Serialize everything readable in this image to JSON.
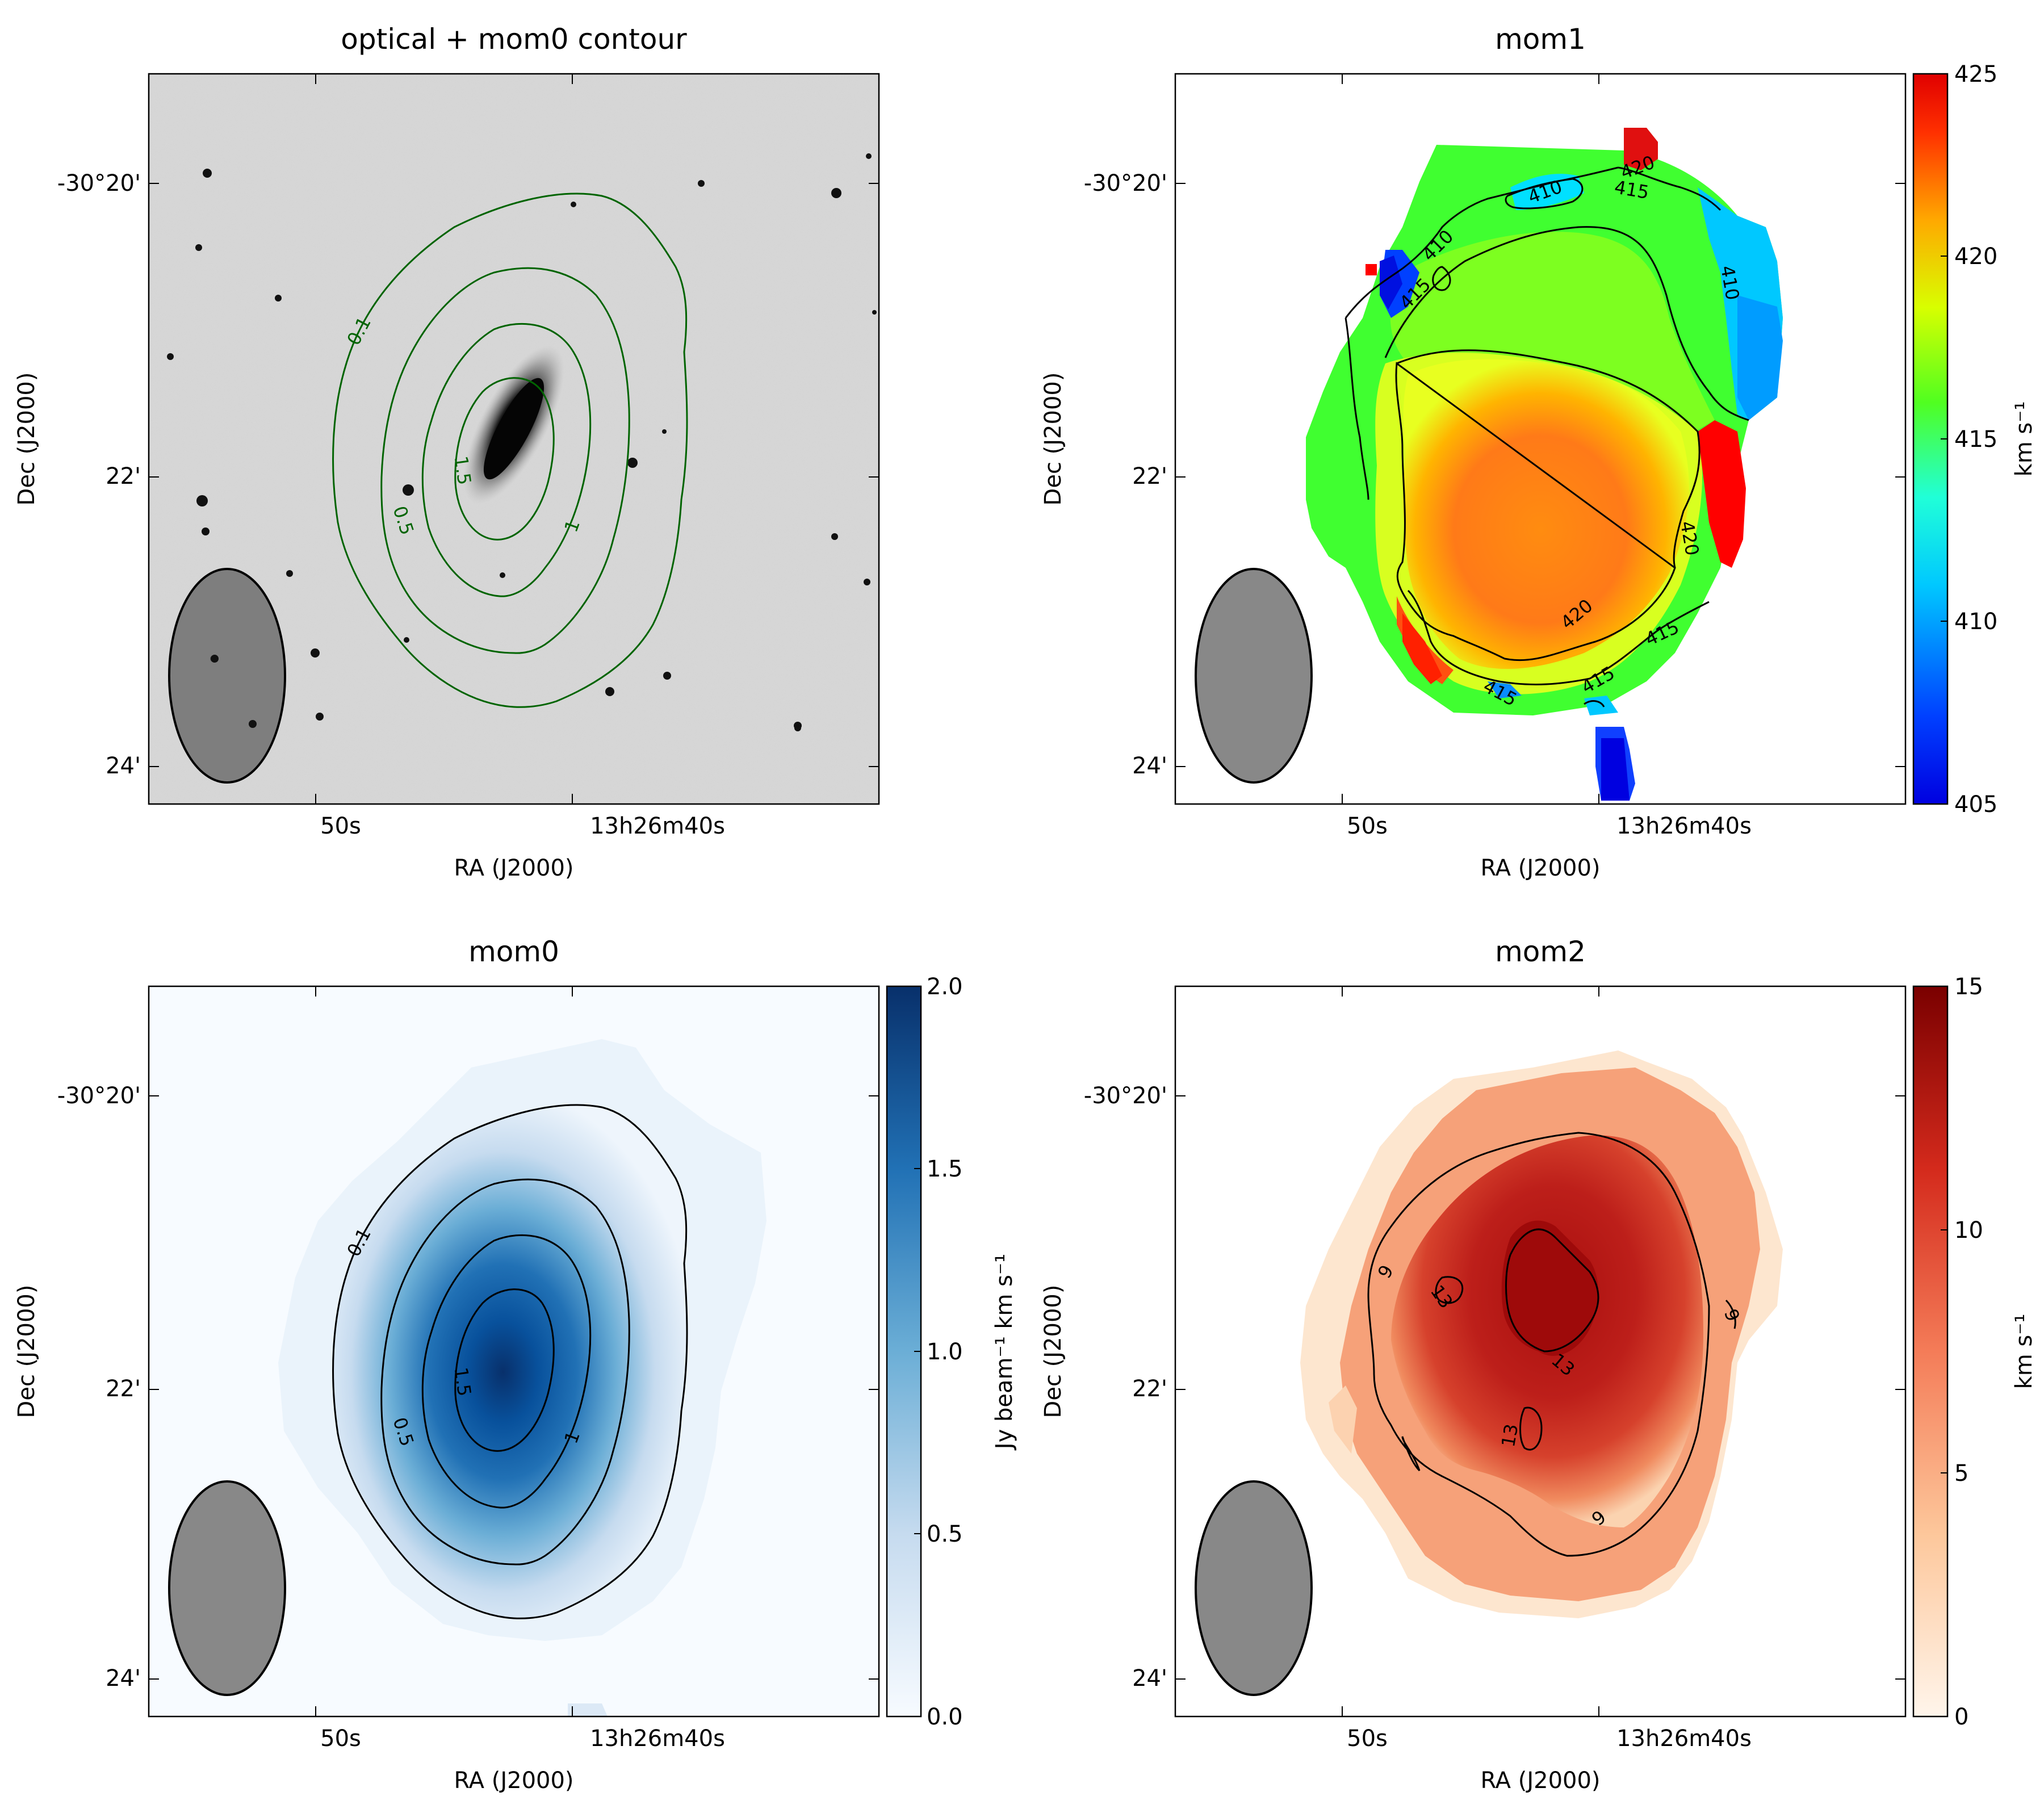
{
  "chart_data": [
    {
      "type": "heatmap",
      "title": "optical + mom0 contour",
      "xlabel": "RA (J2000)",
      "ylabel": "Dec (J2000)",
      "x_ticks": [
        "50s",
        "13h26m40s"
      ],
      "y_ticks": [
        "-30°20'",
        "22'",
        "24'"
      ],
      "background": "optical greyscale image",
      "contour_color": "#006400",
      "contour_levels": [
        0.1,
        0.5,
        1,
        1.5
      ],
      "contour_labels": [
        "0.1",
        "0.5",
        "1",
        "1.5"
      ],
      "beam_color": "#888888"
    },
    {
      "type": "heatmap",
      "title": "mom1",
      "xlabel": "RA (J2000)",
      "ylabel": "Dec (J2000)",
      "x_ticks": [
        "50s",
        "13h26m40s"
      ],
      "y_ticks": [
        "-30°20'",
        "22'",
        "24'"
      ],
      "colormap": "jet",
      "colorbar_label": "km s⁻¹",
      "colorbar_range": [
        405,
        425
      ],
      "colorbar_ticks": [
        "405",
        "410",
        "415",
        "420",
        "425"
      ],
      "contour_color": "#000000",
      "contour_levels": [
        410,
        415,
        420
      ],
      "contour_labels": [
        "410",
        "410",
        "410",
        "415",
        "415",
        "415",
        "415",
        "415",
        "420",
        "420",
        "420"
      ],
      "beam_color": "#888888"
    },
    {
      "type": "heatmap",
      "title": "mom0",
      "xlabel": "RA (J2000)",
      "ylabel": "Dec (J2000)",
      "x_ticks": [
        "50s",
        "13h26m40s"
      ],
      "y_ticks": [
        "-30°20'",
        "22'",
        "24'"
      ],
      "colormap": "Blues",
      "colorbar_label": "Jy beam⁻¹ km s⁻¹",
      "colorbar_range": [
        0.0,
        2.0
      ],
      "colorbar_ticks": [
        "0.0",
        "0.5",
        "1.0",
        "1.5",
        "2.0"
      ],
      "contour_color": "#000000",
      "contour_levels": [
        0.1,
        0.5,
        1,
        1.5
      ],
      "contour_labels": [
        "0.1",
        "0.5",
        "1",
        "1.5"
      ],
      "beam_color": "#888888"
    },
    {
      "type": "heatmap",
      "title": "mom2",
      "xlabel": "RA (J2000)",
      "ylabel": "Dec (J2000)",
      "x_ticks": [
        "50s",
        "13h26m40s"
      ],
      "y_ticks": [
        "-30°20'",
        "22'",
        "24'"
      ],
      "colormap": "OrRd",
      "colorbar_label": "km s⁻¹",
      "colorbar_range": [
        0,
        15
      ],
      "colorbar_ticks": [
        "0",
        "5",
        "10",
        "15"
      ],
      "contour_color": "#000000",
      "contour_levels": [
        9,
        13
      ],
      "contour_labels": [
        "9",
        "9",
        "9",
        "13",
        "13",
        "13"
      ],
      "beam_color": "#888888"
    }
  ]
}
